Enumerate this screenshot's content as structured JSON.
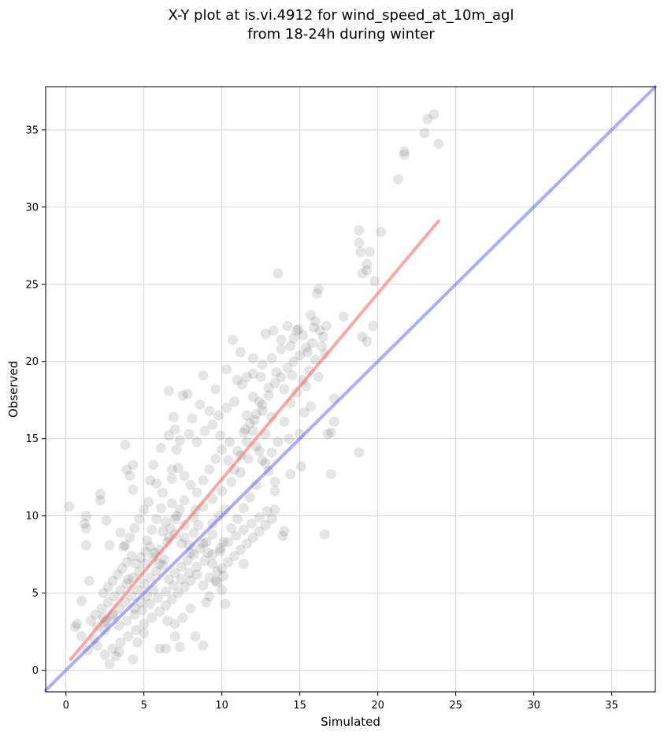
{
  "chart_data": {
    "type": "scatter",
    "title": "X-Y plot at is.vi.4912 for wind_speed_at_10m_agl",
    "subtitle": "from 18-24h during winter",
    "xlabel": "Simulated",
    "ylabel": "Observed",
    "xlim": [
      -1.3,
      37.8
    ],
    "ylim": [
      -1.4,
      37.8
    ],
    "xticks": [
      0,
      5,
      10,
      15,
      20,
      25,
      30,
      35
    ],
    "yticks": [
      0,
      5,
      10,
      15,
      20,
      25,
      30,
      35
    ],
    "xtick_labels": [
      "0",
      "5",
      "10",
      "15",
      "20",
      "25",
      "30",
      "35"
    ],
    "ytick_labels": [
      "0",
      "5",
      "10",
      "15",
      "20",
      "25",
      "30",
      "35"
    ],
    "grid": true,
    "legend": "none",
    "points_color": "#000000",
    "points_opacity": 0.1,
    "points": [
      [
        0.2,
        10.6
      ],
      [
        1.0,
        4.5
      ],
      [
        1.2,
        9.5
      ],
      [
        1.3,
        10.0
      ],
      [
        1.3,
        9.2
      ],
      [
        1.3,
        8.1
      ],
      [
        1.5,
        5.8
      ],
      [
        0.7,
        3.0
      ],
      [
        0.6,
        2.8
      ],
      [
        1.0,
        2.2
      ],
      [
        1.4,
        1.3
      ],
      [
        2.2,
        11.0
      ],
      [
        2.2,
        11.4
      ],
      [
        2.4,
        3.4
      ],
      [
        2.5,
        2.6
      ],
      [
        2.6,
        9.7
      ],
      [
        2.8,
        8.1
      ],
      [
        2.8,
        0.4
      ],
      [
        3.2,
        0.9
      ],
      [
        3.4,
        1.2
      ],
      [
        3.8,
        14.6
      ],
      [
        3.9,
        13.0
      ],
      [
        4.1,
        12.6
      ],
      [
        4.3,
        13.3
      ],
      [
        4.3,
        11.7
      ],
      [
        3.5,
        8.9
      ],
      [
        3.7,
        8.0
      ],
      [
        4.0,
        5.9
      ],
      [
        4.3,
        0.7
      ],
      [
        4.6,
        1.8
      ],
      [
        5.0,
        2.4
      ],
      [
        6.0,
        1.4
      ],
      [
        6.4,
        1.4
      ],
      [
        6.6,
        18.1
      ],
      [
        6.9,
        16.4
      ],
      [
        6.8,
        13.0
      ],
      [
        7.1,
        14.3
      ],
      [
        7.5,
        17.8
      ],
      [
        7.8,
        17.9
      ],
      [
        8.1,
        16.3
      ],
      [
        8.8,
        19.1
      ],
      [
        8.3,
        2.2
      ],
      [
        8.8,
        1.6
      ],
      [
        7.3,
        1.5
      ],
      [
        7.0,
        2.2
      ],
      [
        9.6,
        18.2
      ],
      [
        10.3,
        19.5
      ],
      [
        10.7,
        21.4
      ],
      [
        11.0,
        18.8
      ],
      [
        11.2,
        20.6
      ],
      [
        11.6,
        16.5
      ],
      [
        12.0,
        20.2
      ],
      [
        12.4,
        17.4
      ],
      [
        12.8,
        21.8
      ],
      [
        13.3,
        22.0
      ],
      [
        13.6,
        25.7
      ],
      [
        13.8,
        20.8
      ],
      [
        14.2,
        22.3
      ],
      [
        14.6,
        21.5
      ],
      [
        14.9,
        22.1
      ],
      [
        15.2,
        21.7
      ],
      [
        15.5,
        20.6
      ],
      [
        15.7,
        23.0
      ],
      [
        15.9,
        22.2
      ],
      [
        16.1,
        24.4
      ],
      [
        16.2,
        24.7
      ],
      [
        16.0,
        22.6
      ],
      [
        16.3,
        22.0
      ],
      [
        16.5,
        21.6
      ],
      [
        16.7,
        22.3
      ],
      [
        16.6,
        20.5
      ],
      [
        16.2,
        19.0
      ],
      [
        16.8,
        15.3
      ],
      [
        17.0,
        15.4
      ],
      [
        17.2,
        16.1
      ],
      [
        17.2,
        17.6
      ],
      [
        17.0,
        12.7
      ],
      [
        16.6,
        8.8
      ],
      [
        13.9,
        8.7
      ],
      [
        14.0,
        9.0
      ],
      [
        13.4,
        10.4
      ],
      [
        13.4,
        11.6
      ],
      [
        14.4,
        12.7
      ],
      [
        15.1,
        13.2
      ],
      [
        14.3,
        15.0
      ],
      [
        15.0,
        15.3
      ],
      [
        15.3,
        16.7
      ],
      [
        15.7,
        17.1
      ],
      [
        15.4,
        18.4
      ],
      [
        17.8,
        22.9
      ],
      [
        18.8,
        28.5
      ],
      [
        18.8,
        27.7
      ],
      [
        18.9,
        27.1
      ],
      [
        19.0,
        25.7
      ],
      [
        19.3,
        25.9
      ],
      [
        19.5,
        27.1
      ],
      [
        19.3,
        26.3
      ],
      [
        19.7,
        22.3
      ],
      [
        19.0,
        21.6
      ],
      [
        19.3,
        21.3
      ],
      [
        18.8,
        14.1
      ],
      [
        19.8,
        25.2
      ],
      [
        20.2,
        28.4
      ],
      [
        21.3,
        31.8
      ],
      [
        21.7,
        33.4
      ],
      [
        21.7,
        33.6
      ],
      [
        23.0,
        34.8
      ],
      [
        23.2,
        35.7
      ],
      [
        23.6,
        36.0
      ],
      [
        23.9,
        34.1
      ],
      [
        11.4,
        6.9
      ],
      [
        10.2,
        4.3
      ],
      [
        10.0,
        5.2
      ],
      [
        9.7,
        5.7
      ],
      [
        10.1,
        6.1
      ],
      [
        9.2,
        4.8
      ],
      [
        9.0,
        4.4
      ],
      [
        9.9,
        7.7
      ],
      [
        10.1,
        8.3
      ],
      [
        9.4,
        9.5
      ],
      [
        8.3,
        10.4
      ],
      [
        7.6,
        11.0
      ],
      [
        7.1,
        10.0
      ],
      [
        6.8,
        10.8
      ],
      [
        6.2,
        11.5
      ],
      [
        5.8,
        12.1
      ],
      [
        5.4,
        12.3
      ],
      [
        5.6,
        13.3
      ],
      [
        6.1,
        14.4
      ],
      [
        6.6,
        15.2
      ],
      [
        7.0,
        15.6
      ],
      [
        7.3,
        14.9
      ],
      [
        7.9,
        15.3
      ],
      [
        8.4,
        14.8
      ],
      [
        8.9,
        15.5
      ],
      [
        9.4,
        15.9
      ],
      [
        9.9,
        15.2
      ],
      [
        10.5,
        14.8
      ],
      [
        11.0,
        14.2
      ],
      [
        11.5,
        15.6
      ],
      [
        12.1,
        16.2
      ],
      [
        12.6,
        16.8
      ],
      [
        12.0,
        17.7
      ],
      [
        11.3,
        18.5
      ],
      [
        10.8,
        17.4
      ],
      [
        10.3,
        17.0
      ],
      [
        9.8,
        16.5
      ],
      [
        9.2,
        16.8
      ],
      [
        8.6,
        17.2
      ],
      [
        12.5,
        19.0
      ],
      [
        13.0,
        18.3
      ],
      [
        13.5,
        19.3
      ],
      [
        14.0,
        18.2
      ],
      [
        14.5,
        19.1
      ],
      [
        13.2,
        16.4
      ],
      [
        12.8,
        15.3
      ],
      [
        12.2,
        14.5
      ],
      [
        11.7,
        13.7
      ],
      [
        11.2,
        12.8
      ],
      [
        10.6,
        12.2
      ],
      [
        10.0,
        11.6
      ],
      [
        9.4,
        11.1
      ],
      [
        8.8,
        10.6
      ],
      [
        8.2,
        9.9
      ],
      [
        7.6,
        9.4
      ],
      [
        7.0,
        8.8
      ],
      [
        6.5,
        8.3
      ],
      [
        6.0,
        7.8
      ],
      [
        5.6,
        7.3
      ],
      [
        5.1,
        6.9
      ],
      [
        4.7,
        6.4
      ],
      [
        4.3,
        6.0
      ],
      [
        3.9,
        5.6
      ],
      [
        3.5,
        5.2
      ],
      [
        3.1,
        4.8
      ],
      [
        2.7,
        4.4
      ],
      [
        2.3,
        4.0
      ],
      [
        1.9,
        3.6
      ],
      [
        1.6,
        3.2
      ],
      [
        2.0,
        2.8
      ],
      [
        2.5,
        3.1
      ],
      [
        3.0,
        3.5
      ],
      [
        3.4,
        2.9
      ],
      [
        3.9,
        3.2
      ],
      [
        4.4,
        3.6
      ],
      [
        4.9,
        3.9
      ],
      [
        5.4,
        4.3
      ],
      [
        5.9,
        4.7
      ],
      [
        6.4,
        5.1
      ],
      [
        6.9,
        5.5
      ],
      [
        7.4,
        5.9
      ],
      [
        7.9,
        6.3
      ],
      [
        8.4,
        6.7
      ],
      [
        8.9,
        7.1
      ],
      [
        9.4,
        7.5
      ],
      [
        9.9,
        7.9
      ],
      [
        10.4,
        8.3
      ],
      [
        10.9,
        8.7
      ],
      [
        11.4,
        9.1
      ],
      [
        11.9,
        9.5
      ],
      [
        12.4,
        9.9
      ],
      [
        12.9,
        10.3
      ],
      [
        13.4,
        12.2
      ],
      [
        13.0,
        12.9
      ],
      [
        12.6,
        13.6
      ],
      [
        12.2,
        12.0
      ],
      [
        11.8,
        11.2
      ],
      [
        11.4,
        10.5
      ],
      [
        11.0,
        9.8
      ],
      [
        10.6,
        9.2
      ],
      [
        10.2,
        10.4
      ],
      [
        9.8,
        10.0
      ],
      [
        9.4,
        8.8
      ],
      [
        9.0,
        8.3
      ],
      [
        8.6,
        7.9
      ],
      [
        8.2,
        7.5
      ],
      [
        7.8,
        7.1
      ],
      [
        7.4,
        6.7
      ],
      [
        7.0,
        6.3
      ],
      [
        6.6,
        5.9
      ],
      [
        6.2,
        6.8
      ],
      [
        5.8,
        6.4
      ],
      [
        5.4,
        6.0
      ],
      [
        5.0,
        5.6
      ],
      [
        4.6,
        5.2
      ],
      [
        4.2,
        4.8
      ],
      [
        3.8,
        4.4
      ],
      [
        3.4,
        4.0
      ],
      [
        3.0,
        3.6
      ],
      [
        2.6,
        3.2
      ],
      [
        5.2,
        8.4
      ],
      [
        5.5,
        9.1
      ],
      [
        5.8,
        9.8
      ],
      [
        6.1,
        10.5
      ],
      [
        6.4,
        9.6
      ],
      [
        6.7,
        9.2
      ],
      [
        7.0,
        9.8
      ],
      [
        7.3,
        10.4
      ],
      [
        7.6,
        8.6
      ],
      [
        7.9,
        8.1
      ],
      [
        8.2,
        8.9
      ],
      [
        8.5,
        9.4
      ],
      [
        8.8,
        8.2
      ],
      [
        9.1,
        7.6
      ],
      [
        9.4,
        6.9
      ],
      [
        9.7,
        6.4
      ],
      [
        6.3,
        7.2
      ],
      [
        6.0,
        6.9
      ],
      [
        5.7,
        7.6
      ],
      [
        5.4,
        8.0
      ],
      [
        5.1,
        7.7
      ],
      [
        4.8,
        7.3
      ],
      [
        4.5,
        6.9
      ],
      [
        4.2,
        7.4
      ],
      [
        3.9,
        7.0
      ],
      [
        3.6,
        6.6
      ],
      [
        3.3,
        6.2
      ],
      [
        3.0,
        5.8
      ],
      [
        2.7,
        5.4
      ],
      [
        2.4,
        5.0
      ],
      [
        4.4,
        9.2
      ],
      [
        4.7,
        9.8
      ],
      [
        5.0,
        10.4
      ],
      [
        5.3,
        10.9
      ],
      [
        4.1,
        8.6
      ],
      [
        3.8,
        8.1
      ],
      [
        6.8,
        12.4
      ],
      [
        7.2,
        13.1
      ],
      [
        7.6,
        12.6
      ],
      [
        8.0,
        12.0
      ],
      [
        8.4,
        11.5
      ],
      [
        8.8,
        12.3
      ],
      [
        9.2,
        13.0
      ],
      [
        9.6,
        13.7
      ],
      [
        10.0,
        14.3
      ],
      [
        10.4,
        13.6
      ],
      [
        10.8,
        13.0
      ],
      [
        11.2,
        13.9
      ],
      [
        11.6,
        14.8
      ],
      [
        12.0,
        15.5
      ],
      [
        12.4,
        14.2
      ],
      [
        12.8,
        13.4
      ],
      [
        13.2,
        14.1
      ],
      [
        13.6,
        14.8
      ],
      [
        14.0,
        16.1
      ],
      [
        14.4,
        17.3
      ],
      [
        14.8,
        18.0
      ],
      [
        15.2,
        18.8
      ],
      [
        15.6,
        19.4
      ],
      [
        16.0,
        20.1
      ],
      [
        15.0,
        20.4
      ],
      [
        14.6,
        20.0
      ],
      [
        14.2,
        19.6
      ],
      [
        13.8,
        19.0
      ],
      [
        13.4,
        18.6
      ],
      [
        13.0,
        17.8
      ],
      [
        12.6,
        17.2
      ],
      [
        12.2,
        16.6
      ],
      [
        11.8,
        16.0
      ],
      [
        11.4,
        15.4
      ],
      [
        6.0,
        3.8
      ],
      [
        6.4,
        4.2
      ],
      [
        6.8,
        4.6
      ],
      [
        7.2,
        5.0
      ],
      [
        7.6,
        5.4
      ],
      [
        8.0,
        5.8
      ],
      [
        8.4,
        6.2
      ],
      [
        8.8,
        5.5
      ],
      [
        9.2,
        6.0
      ],
      [
        9.6,
        5.8
      ],
      [
        10.0,
        6.6
      ],
      [
        10.4,
        7.0
      ],
      [
        10.8,
        7.4
      ],
      [
        11.2,
        7.8
      ],
      [
        11.6,
        8.2
      ],
      [
        12.0,
        8.6
      ],
      [
        12.4,
        9.0
      ],
      [
        12.8,
        9.4
      ],
      [
        13.2,
        9.8
      ],
      [
        5.0,
        3.0
      ],
      [
        5.5,
        3.4
      ],
      [
        4.5,
        2.6
      ],
      [
        4.0,
        2.2
      ],
      [
        3.5,
        1.8
      ],
      [
        3.0,
        1.4
      ],
      [
        2.5,
        1.0
      ],
      [
        2.0,
        1.6
      ],
      [
        1.8,
        2.0
      ],
      [
        6.5,
        3.2
      ],
      [
        7.0,
        3.0
      ],
      [
        7.5,
        3.4
      ],
      [
        8.0,
        4.0
      ],
      [
        6.2,
        9.0
      ],
      [
        6.6,
        8.6
      ],
      [
        7.4,
        8.2
      ],
      [
        8.0,
        7.6
      ],
      [
        5.6,
        5.2
      ],
      [
        5.2,
        4.8
      ],
      [
        4.8,
        4.4
      ],
      [
        4.4,
        4.0
      ],
      [
        15.8,
        21.2
      ],
      [
        16.4,
        21.0
      ],
      [
        15.4,
        20.9
      ],
      [
        14.8,
        22.0
      ],
      [
        14.4,
        21.0
      ],
      [
        13.8,
        21.4
      ],
      [
        13.2,
        20.2
      ],
      [
        12.6,
        19.8
      ],
      [
        12.0,
        19.2
      ],
      [
        11.6,
        19.0
      ]
    ],
    "fit_line": {
      "color": "#f07070",
      "opacity": 0.6,
      "start": [
        0.3,
        0.7
      ],
      "end": [
        23.9,
        29.1
      ]
    },
    "identity_line": {
      "color": "#5a5af0",
      "opacity": 0.5,
      "start": [
        -1.3,
        -1.3
      ],
      "end": [
        37.8,
        37.8
      ]
    }
  }
}
